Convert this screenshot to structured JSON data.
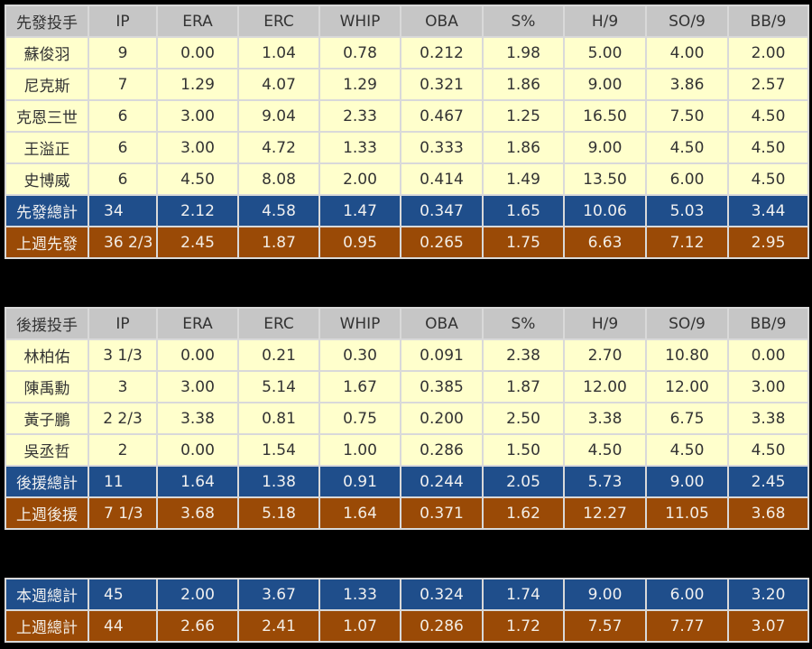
{
  "colors": {
    "header": "#c6c6c6",
    "player_row": "#ffffcc",
    "this_week_total": "#1f4e8b",
    "last_week_total": "#9a4a06"
  },
  "starters": {
    "headers": [
      "先發投手",
      "IP",
      "ERA",
      "ERC",
      "WHIP",
      "OBA",
      "S%",
      "H/9",
      "SO/9",
      "BB/9"
    ],
    "rows": [
      {
        "type": "player",
        "cells": [
          "蘇俊羽",
          "9",
          "0.00",
          "1.04",
          "0.78",
          "0.212",
          "1.98",
          "5.00",
          "4.00",
          "2.00"
        ]
      },
      {
        "type": "player",
        "cells": [
          "尼克斯",
          "7",
          "1.29",
          "4.07",
          "1.29",
          "0.321",
          "1.86",
          "9.00",
          "3.86",
          "2.57"
        ]
      },
      {
        "type": "player",
        "cells": [
          "克恩三世",
          "6",
          "3.00",
          "9.04",
          "2.33",
          "0.467",
          "1.25",
          "16.50",
          "7.50",
          "4.50"
        ]
      },
      {
        "type": "player",
        "cells": [
          "王溢正",
          "6",
          "3.00",
          "4.72",
          "1.33",
          "0.333",
          "1.86",
          "9.00",
          "4.50",
          "4.50"
        ]
      },
      {
        "type": "player",
        "cells": [
          "史博威",
          "6",
          "4.50",
          "8.08",
          "2.00",
          "0.414",
          "1.49",
          "13.50",
          "6.00",
          "4.50"
        ]
      },
      {
        "type": "cur",
        "cells": [
          "先發總計",
          "34",
          "2.12",
          "4.58",
          "1.47",
          "0.347",
          "1.65",
          "10.06",
          "5.03",
          "3.44"
        ]
      },
      {
        "type": "prev",
        "cells": [
          "上週先發",
          "36 2/3",
          "2.45",
          "1.87",
          "0.95",
          "0.265",
          "1.75",
          "6.63",
          "7.12",
          "2.95"
        ]
      }
    ]
  },
  "relievers": {
    "headers": [
      "後援投手",
      "IP",
      "ERA",
      "ERC",
      "WHIP",
      "OBA",
      "S%",
      "H/9",
      "SO/9",
      "BB/9"
    ],
    "rows": [
      {
        "type": "player",
        "cells": [
          "林柏佑",
          "3 1/3",
          "0.00",
          "0.21",
          "0.30",
          "0.091",
          "2.38",
          "2.70",
          "10.80",
          "0.00"
        ]
      },
      {
        "type": "player",
        "cells": [
          "陳禹勳",
          "3",
          "3.00",
          "5.14",
          "1.67",
          "0.385",
          "1.87",
          "12.00",
          "12.00",
          "3.00"
        ]
      },
      {
        "type": "player",
        "cells": [
          "黃子鵬",
          "2 2/3",
          "3.38",
          "0.81",
          "0.75",
          "0.200",
          "2.50",
          "3.38",
          "6.75",
          "3.38"
        ]
      },
      {
        "type": "player",
        "cells": [
          "吳丞哲",
          "2",
          "0.00",
          "1.54",
          "1.00",
          "0.286",
          "1.50",
          "4.50",
          "4.50",
          "4.50"
        ]
      },
      {
        "type": "cur",
        "cells": [
          "後援總計",
          "11",
          "1.64",
          "1.38",
          "0.91",
          "0.244",
          "2.05",
          "5.73",
          "9.00",
          "2.45"
        ]
      },
      {
        "type": "prev",
        "cells": [
          "上週後援",
          "7 1/3",
          "3.68",
          "5.18",
          "1.64",
          "0.371",
          "1.62",
          "12.27",
          "11.05",
          "3.68"
        ]
      }
    ]
  },
  "totals": {
    "rows": [
      {
        "type": "cur",
        "cells": [
          "本週總計",
          "45",
          "2.00",
          "3.67",
          "1.33",
          "0.324",
          "1.74",
          "9.00",
          "6.00",
          "3.20"
        ]
      },
      {
        "type": "prev",
        "cells": [
          "上週總計",
          "44",
          "2.66",
          "2.41",
          "1.07",
          "0.286",
          "1.72",
          "7.57",
          "7.77",
          "3.07"
        ]
      }
    ]
  }
}
